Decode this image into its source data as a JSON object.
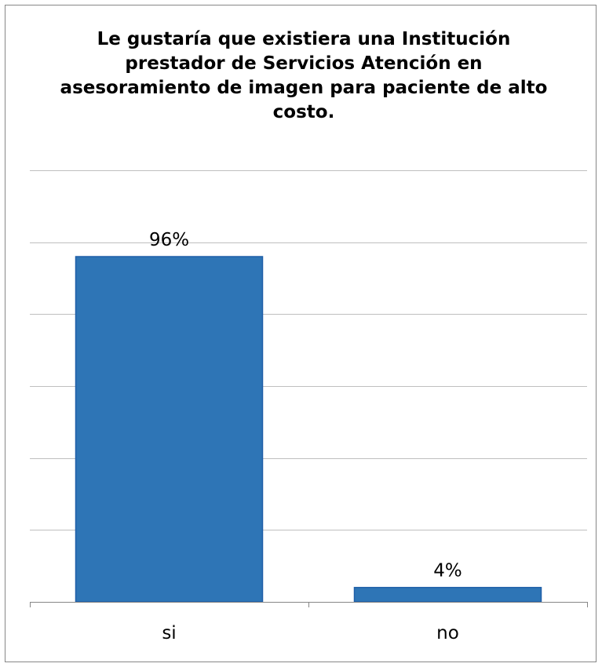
{
  "chart_data": {
    "type": "bar",
    "title": "Le gustaría que existiera una Institución prestador de Servicios Atención en asesoramiento de imagen para paciente de alto costo.",
    "categories": [
      "si",
      "no"
    ],
    "values": [
      96,
      4
    ],
    "data_labels": [
      "96%",
      "4%"
    ],
    "ylim": [
      0,
      120
    ],
    "grid": true,
    "legend": "none",
    "bar_color": "#2E75B6",
    "bar_edge_color": "#1F5FA8"
  }
}
